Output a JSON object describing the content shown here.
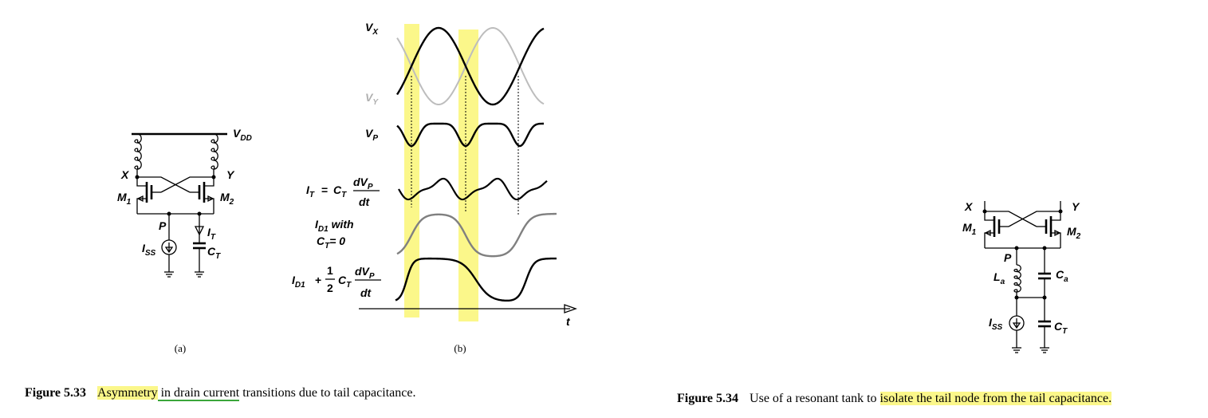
{
  "figure_5_33": {
    "panel_a": {
      "vdd": {
        "base": "V",
        "sub": "DD"
      },
      "x": "X",
      "y": "Y",
      "m1": {
        "base": "M",
        "sub": "1"
      },
      "m2": {
        "base": "M",
        "sub": "2"
      },
      "p": "P",
      "it": {
        "base": "I",
        "sub": "T"
      },
      "ct": {
        "base": "C",
        "sub": "T"
      },
      "iss": {
        "base": "I",
        "sub": "SS"
      },
      "caption": "(a)"
    },
    "panel_b": {
      "vx": {
        "base": "V",
        "sub": "X"
      },
      "vy": {
        "base": "V",
        "sub": "Y"
      },
      "vp": {
        "base": "V",
        "sub": "P"
      },
      "it_formula": {
        "lhs": {
          "base": "I",
          "sub": "T"
        },
        "eq": "=",
        "coef": {
          "base": "C",
          "sub": "T"
        },
        "num": {
          "base": "dV",
          "sub": "P"
        },
        "den": "dt"
      },
      "id1_zero": {
        "line1": {
          "base": "I",
          "sub": "D1",
          "tail": " with"
        },
        "line2": {
          "base": "C",
          "sub": "T",
          "tail": "= 0"
        }
      },
      "id1_sum": {
        "term": {
          "base": "I",
          "sub": "D1"
        },
        "plus": "+",
        "frac_num": "1",
        "frac_den": "2",
        "coef": {
          "base": "C",
          "sub": "T"
        },
        "num": {
          "base": "dV",
          "sub": "P"
        },
        "den": "dt"
      },
      "t": "t",
      "caption": "(b)"
    },
    "caption": {
      "label": "Figure 5.33",
      "parts": [
        "Asymmetry",
        " in drain current",
        " transitions due to tail capacitance."
      ]
    }
  },
  "figure_5_34": {
    "labels": {
      "x": "X",
      "y": "Y",
      "m1": {
        "base": "M",
        "sub": "1"
      },
      "m2": {
        "base": "M",
        "sub": "2"
      },
      "p": "P",
      "la": {
        "base": "L",
        "sub": "a"
      },
      "ca": {
        "base": "C",
        "sub": "a"
      },
      "iss": {
        "base": "I",
        "sub": "SS"
      },
      "ct": {
        "base": "C",
        "sub": "T"
      }
    },
    "caption": {
      "label": "Figure 5.34",
      "parts": [
        "Use of a resonant tank to ",
        "isolate the tail node from the tail capacitance."
      ]
    }
  }
}
